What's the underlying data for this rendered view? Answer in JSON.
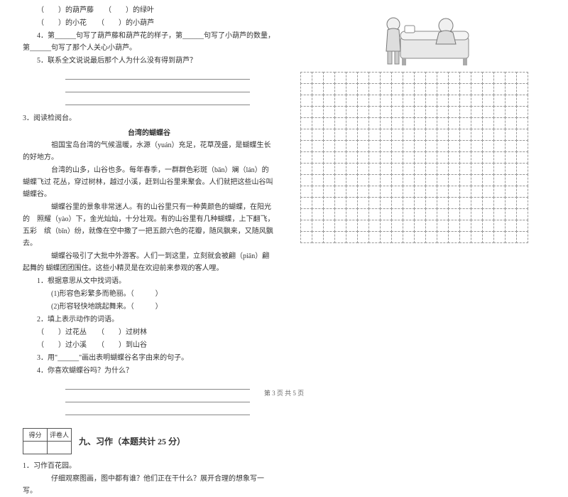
{
  "left": {
    "fill1": "（　　）的葫芦藤　　（　　）的绿叶",
    "fill2": "（　　）的小花　　（　　）的小葫芦",
    "q4": "4．第______句写了葫芦藤和葫芦花的样子，第______句写了小葫芦的数量，第______句写了那个人关心小葫芦。",
    "q5": "5．联系全文说说最后那个人为什么没有得到葫芦？",
    "read3": "3．阅读检阅台。",
    "title": "台湾的蝴蝶谷",
    "p1": "祖国宝岛台湾的气候温暖，水源（yuán）充足，花草茂盛，是蝴蝶生长的好地方。",
    "p2": "台湾的山多，山谷也多。每年春季，一群群色彩斑（bān）斓（lán）的蝴蝶飞过 花丛，穿过树林，越过小溪，赶到山谷里来聚会。人们就把这些山谷叫蝴蝶谷。",
    "p3": "蝴蝶谷里的景象非常迷人。有的山谷里只有一种黄颜色的蝴蝶，在阳光的　照耀（yào）下，金光灿灿，十分壮观。有的山谷里有几种蝴蝶，上下翻飞，五彩　缤（bīn）纷，就像在空中撒了一把五颜六色的花瓣，随风飘来，又随风飘去。",
    "p4": "蝴蝶谷吸引了大批中外游客。人们一到这里，立刻就会被翩（piān）翩起舞的 蝴蝶团团围住。这些小精灵是在欢迎前来参观的客人哩。",
    "q1": "1．根据意思从文中找词语。",
    "q1a": "(1)形容色彩繁多而艳丽。（　　　）",
    "q1b": "(2)形容轻快地跳起舞来。（　　　）",
    "q2": "2．填上表示动作的词语。",
    "q2a": "（　　）过花丛　　（　　）过树林",
    "q2b": "（　　）过小溪　　（　　）到山谷",
    "q3": "3．用\"______\"画出表明蝴蝶谷名字由来的句子。",
    "q4b": "4．你喜欢蝴蝶谷吗？为什么？",
    "scoreHead1": "得分",
    "scoreHead2": "评卷人",
    "section9": "九、习作（本题共计 25 分）",
    "zuowen1": "1．习作百花园。",
    "zuowen2": "仔细观察图画，图中都有谁？他们正在干什么？展开合理的想象写一写。"
  },
  "grid": {
    "rows": 15,
    "cols": 20
  },
  "footer": "第 3 页 共 5 页",
  "colors": {
    "text": "#333333",
    "gridBorder": "#999999",
    "underline": "#888888"
  }
}
